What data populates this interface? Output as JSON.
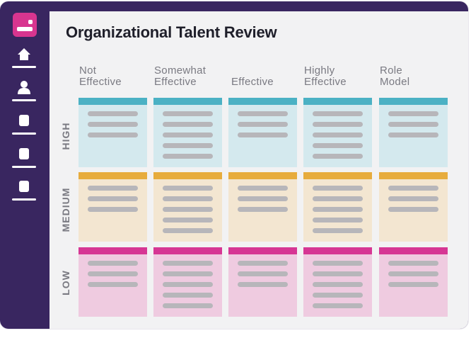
{
  "page": {
    "title": "Organizational Talent Review"
  },
  "colors": {
    "sidebar": "#392660",
    "logo": "#d8358f",
    "high_band": "#4bb1c4",
    "high_fill": "#d4e9ee",
    "medium_band": "#e7ac3d",
    "medium_fill": "#f3e6d1",
    "low_band": "#d63694",
    "low_fill": "#efcbe0",
    "placeholder": "#b7b6ba"
  },
  "sidebar": {
    "items": [
      {
        "icon": "home-icon"
      },
      {
        "icon": "user-icon"
      },
      {
        "icon": "document-icon"
      },
      {
        "icon": "document-icon"
      },
      {
        "icon": "document-icon"
      }
    ]
  },
  "grid": {
    "columns": [
      {
        "label": "Not\nEffective"
      },
      {
        "label": "Somewhat\nEffective"
      },
      {
        "label": "Effective"
      },
      {
        "label": "Highly\nEffective"
      },
      {
        "label": "Role\nModel"
      }
    ],
    "rows": [
      {
        "label": "HIGH",
        "level": "high",
        "lines": [
          3,
          5,
          3,
          5,
          3
        ]
      },
      {
        "label": "MEDIUM",
        "level": "medium",
        "lines": [
          3,
          5,
          3,
          5,
          3
        ]
      },
      {
        "label": "LOW",
        "level": "low",
        "lines": [
          3,
          5,
          3,
          5,
          3
        ]
      }
    ]
  }
}
